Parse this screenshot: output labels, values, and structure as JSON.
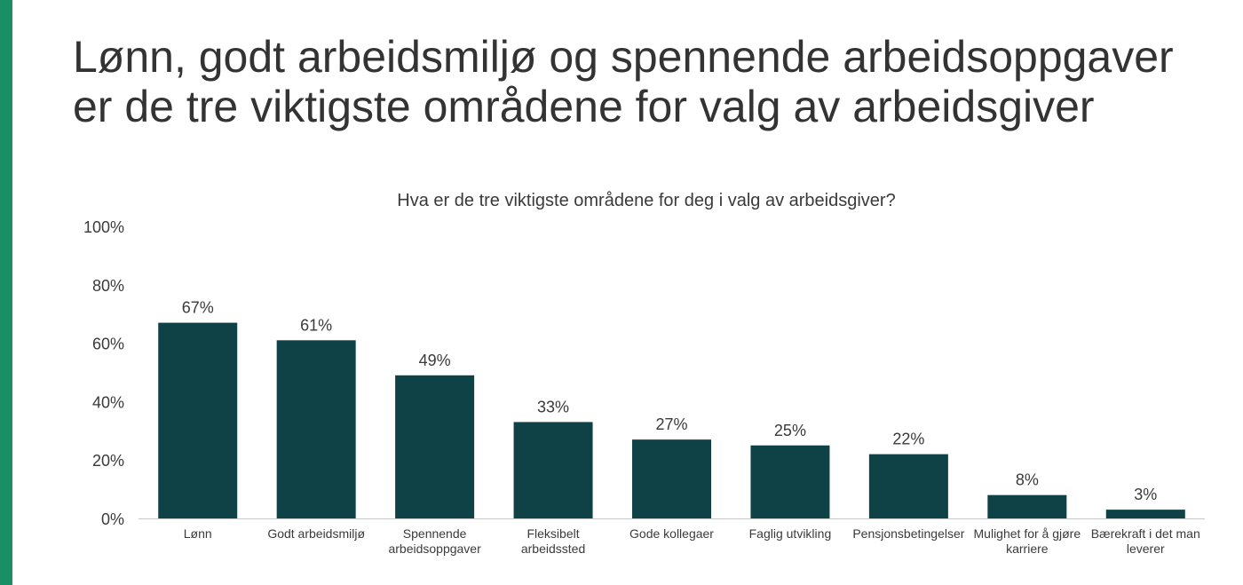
{
  "headline": {
    "line1": "Lønn, godt arbeidsmiljø og spennende arbeidsoppgaver",
    "line2": "er de tre viktigste områdene for valg av arbeidsgiver"
  },
  "colors": {
    "accent": "#1a8f66",
    "bar": "#0f4246",
    "axis": "#c8c8c8",
    "text": "#3a3a3a"
  },
  "chart_data": {
    "type": "bar",
    "title": "Hva er de tre viktigste områdene for deg i valg av arbeidsgiver?",
    "categories": [
      [
        "Lønn"
      ],
      [
        "Godt arbeidsmiljø"
      ],
      [
        "Spennende",
        "arbeidsoppgaver"
      ],
      [
        "Fleksibelt",
        "arbeidssted"
      ],
      [
        "Gode kollegaer"
      ],
      [
        "Faglig utvikling"
      ],
      [
        "Pensjonsbetingelser"
      ],
      [
        "Mulighet for å gjøre",
        "karriere"
      ],
      [
        "Bærekraft i det man",
        "leverer"
      ]
    ],
    "values": [
      67,
      61,
      49,
      33,
      27,
      25,
      22,
      8,
      3
    ],
    "data_labels": [
      "67%",
      "61%",
      "49%",
      "33%",
      "27%",
      "25%",
      "22%",
      "8%",
      "3%"
    ],
    "yticks": [
      0,
      20,
      40,
      60,
      80,
      100
    ],
    "ytick_labels": [
      "0%",
      "20%",
      "40%",
      "60%",
      "80%",
      "100%"
    ],
    "ylim": [
      0,
      100
    ],
    "grid": false,
    "legend": "none"
  }
}
